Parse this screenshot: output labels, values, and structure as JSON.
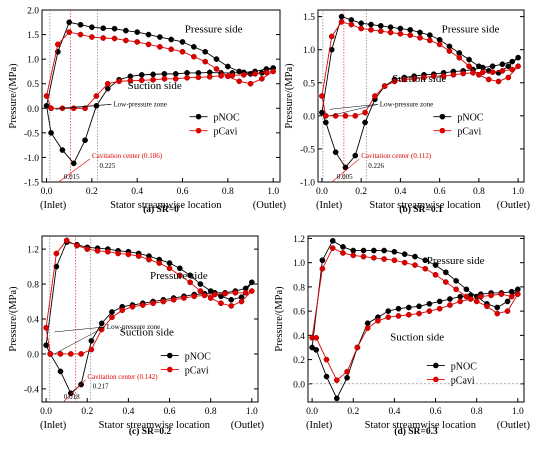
{
  "chart_data": [
    {
      "type": "line",
      "caption": "(a) SR=0",
      "ylabel": "Pressure/(MPa)",
      "xlabel": "Stator streamwise location",
      "x_end_labels": [
        "(Inlet)",
        "(Outlet)"
      ],
      "x_ticks": [
        0.0,
        0.2,
        0.4,
        0.6,
        0.8,
        1.0
      ],
      "x_tick_labels": [
        "0.0",
        "0.2",
        "0.4",
        "0.6",
        "0.8",
        "1.0"
      ],
      "y_ticks": [
        -1.5,
        -1.0,
        -0.5,
        0.0,
        0.5,
        1.0,
        1.5,
        2.0
      ],
      "y_tick_labels": [
        "-1.5",
        "-1.0",
        "-0.5",
        "0.0",
        "0.5",
        "1.0",
        "1.5",
        "2.0"
      ],
      "xlim": [
        -0.02,
        1.03
      ],
      "ylim": [
        -1.5,
        2.0
      ],
      "pressure_side_label": "Pressure side",
      "suction_side_label": "Suction side",
      "low_pressure_label": "Low-pressure zone",
      "cavitation_label": "Cavitation center (0.106)",
      "cavitation_x": 0.106,
      "marker_labels": [
        "0.015",
        "0.225"
      ],
      "marker_x": [
        0.015,
        0.225
      ],
      "zero_line": false,
      "series": [
        {
          "name": "pNOC",
          "color": "#000000",
          "x": [
            0.0,
            0.05,
            0.1,
            0.15,
            0.2,
            0.25,
            0.3,
            0.35,
            0.4,
            0.45,
            0.5,
            0.55,
            0.6,
            0.65,
            0.7,
            0.75,
            0.8,
            0.85,
            0.9,
            0.95,
            1.0,
            0.97,
            0.92,
            0.87,
            0.82,
            0.77,
            0.72,
            0.67,
            0.62,
            0.57,
            0.52,
            0.47,
            0.42,
            0.37,
            0.32,
            0.27,
            0.22,
            0.17,
            0.12,
            0.07,
            0.02
          ],
          "y": [
            0.05,
            1.15,
            1.75,
            1.7,
            1.65,
            1.63,
            1.62,
            1.58,
            1.55,
            1.5,
            1.45,
            1.4,
            1.35,
            1.25,
            1.15,
            1.0,
            0.85,
            0.75,
            0.7,
            0.72,
            0.82,
            0.8,
            0.75,
            0.73,
            0.72,
            0.72,
            0.73,
            0.72,
            0.72,
            0.7,
            0.7,
            0.69,
            0.68,
            0.65,
            0.58,
            0.4,
            0.05,
            -0.65,
            -1.12,
            -0.85,
            -0.5
          ]
        },
        {
          "name": "pCavi",
          "color": "#e00000",
          "x": [
            0.0,
            0.05,
            0.1,
            0.15,
            0.2,
            0.25,
            0.3,
            0.35,
            0.4,
            0.45,
            0.5,
            0.55,
            0.6,
            0.65,
            0.7,
            0.75,
            0.8,
            0.85,
            0.9,
            0.95,
            1.0,
            0.97,
            0.92,
            0.87,
            0.82,
            0.77,
            0.72,
            0.67,
            0.62,
            0.57,
            0.52,
            0.47,
            0.42,
            0.37,
            0.32,
            0.27,
            0.22,
            0.17,
            0.12,
            0.07,
            0.02
          ],
          "y": [
            0.25,
            1.3,
            1.55,
            1.5,
            1.45,
            1.43,
            1.42,
            1.38,
            1.35,
            1.3,
            1.25,
            1.2,
            1.15,
            1.05,
            0.95,
            0.8,
            0.65,
            0.55,
            0.5,
            0.6,
            0.75,
            0.73,
            0.7,
            0.68,
            0.67,
            0.66,
            0.64,
            0.63,
            0.62,
            0.6,
            0.6,
            0.58,
            0.57,
            0.56,
            0.55,
            0.5,
            0.25,
            0.0,
            0.0,
            0.0,
            0.0
          ]
        }
      ]
    },
    {
      "type": "line",
      "caption": "(b) SR=0.1",
      "ylabel": "Pressure/(MPa)",
      "xlabel": "Stator streamwise location",
      "x_end_labels": [
        "(Inlet)",
        "(Outlet)"
      ],
      "x_ticks": [
        0.0,
        0.2,
        0.4,
        0.6,
        0.8,
        1.0
      ],
      "x_tick_labels": [
        "0.0",
        "0.2",
        "0.4",
        "0.6",
        "0.8",
        "1.0"
      ],
      "y_ticks": [
        -1.0,
        -0.5,
        0.0,
        0.5,
        1.0,
        1.5
      ],
      "y_tick_labels": [
        "-1.0",
        "-0.5",
        "0.0",
        "0.5",
        "1.0",
        "1.5"
      ],
      "xlim": [
        -0.02,
        1.03
      ],
      "ylim": [
        -1.0,
        1.6
      ],
      "pressure_side_label": "Pressure side",
      "suction_side_label": "Suction side",
      "low_pressure_label": "Low-pressure zone",
      "cavitation_label": "Cavitation center (0.112)",
      "cavitation_x": 0.112,
      "marker_labels": [
        "0.005",
        "0.226"
      ],
      "marker_x": [
        0.005,
        0.226
      ],
      "zero_line": false,
      "series": [
        {
          "name": "pNOC",
          "color": "#000000",
          "x": [
            0.0,
            0.05,
            0.1,
            0.15,
            0.2,
            0.25,
            0.3,
            0.35,
            0.4,
            0.45,
            0.5,
            0.55,
            0.6,
            0.65,
            0.7,
            0.75,
            0.8,
            0.85,
            0.9,
            0.95,
            1.0,
            0.97,
            0.92,
            0.87,
            0.82,
            0.77,
            0.72,
            0.67,
            0.62,
            0.57,
            0.52,
            0.47,
            0.42,
            0.37,
            0.32,
            0.27,
            0.22,
            0.17,
            0.12,
            0.07,
            0.02
          ],
          "y": [
            0.05,
            1.0,
            1.5,
            1.45,
            1.4,
            1.38,
            1.36,
            1.34,
            1.32,
            1.3,
            1.26,
            1.22,
            1.15,
            1.05,
            0.95,
            0.85,
            0.75,
            0.68,
            0.65,
            0.75,
            0.88,
            0.82,
            0.78,
            0.75,
            0.73,
            0.7,
            0.68,
            0.67,
            0.65,
            0.63,
            0.62,
            0.6,
            0.58,
            0.55,
            0.45,
            0.25,
            -0.1,
            -0.6,
            -0.78,
            -0.55,
            -0.1
          ]
        },
        {
          "name": "pCavi",
          "color": "#e00000",
          "x": [
            0.0,
            0.05,
            0.1,
            0.15,
            0.2,
            0.25,
            0.3,
            0.35,
            0.4,
            0.45,
            0.5,
            0.55,
            0.6,
            0.65,
            0.7,
            0.75,
            0.8,
            0.85,
            0.9,
            0.95,
            1.0,
            0.97,
            0.92,
            0.87,
            0.82,
            0.77,
            0.72,
            0.67,
            0.62,
            0.57,
            0.52,
            0.47,
            0.42,
            0.37,
            0.32,
            0.27,
            0.22,
            0.17,
            0.12,
            0.07,
            0.02
          ],
          "y": [
            0.3,
            1.2,
            1.42,
            1.38,
            1.32,
            1.3,
            1.28,
            1.26,
            1.24,
            1.22,
            1.18,
            1.14,
            1.08,
            0.98,
            0.88,
            0.75,
            0.62,
            0.55,
            0.52,
            0.58,
            0.75,
            0.7,
            0.68,
            0.66,
            0.66,
            0.65,
            0.64,
            0.62,
            0.6,
            0.6,
            0.58,
            0.56,
            0.55,
            0.52,
            0.45,
            0.3,
            0.05,
            0.0,
            0.0,
            0.0,
            0.0
          ]
        }
      ]
    },
    {
      "type": "line",
      "caption": "(c) SR=0.2",
      "ylabel": "Pressure/(MPa)",
      "xlabel": "Stator streamwise location",
      "x_end_labels": [
        "(Inlet)",
        "(Outlet)"
      ],
      "x_ticks": [
        0.0,
        0.2,
        0.4,
        0.6,
        0.8,
        1.0
      ],
      "x_tick_labels": [
        "0.0",
        "0.2",
        "0.4",
        "0.6",
        "0.8",
        "1.0"
      ],
      "y_ticks": [
        -0.4,
        0.0,
        0.4,
        0.8,
        1.2
      ],
      "y_tick_labels": [
        "-0.4",
        "0.0",
        "0.4",
        "0.8",
        "1.2"
      ],
      "xlim": [
        -0.02,
        1.03
      ],
      "ylim": [
        -0.55,
        1.35
      ],
      "pressure_side_label": "Pressure side",
      "suction_side_label": "Suction side",
      "low_pressure_label": "Low-pressure zone",
      "cavitation_label": "Cavitation center (0.142)",
      "cavitation_x": 0.142,
      "marker_labels": [
        "0.018",
        "0.217"
      ],
      "marker_x": [
        0.018,
        0.217
      ],
      "zero_line": false,
      "series": [
        {
          "name": "pNOC",
          "color": "#000000",
          "x": [
            0.0,
            0.05,
            0.1,
            0.15,
            0.2,
            0.25,
            0.3,
            0.35,
            0.4,
            0.45,
            0.5,
            0.55,
            0.6,
            0.65,
            0.7,
            0.75,
            0.8,
            0.85,
            0.9,
            0.95,
            1.0,
            0.97,
            0.92,
            0.87,
            0.82,
            0.77,
            0.72,
            0.67,
            0.62,
            0.57,
            0.52,
            0.47,
            0.42,
            0.37,
            0.32,
            0.27,
            0.22,
            0.17,
            0.12,
            0.07,
            0.02
          ],
          "y": [
            0.1,
            1.0,
            1.28,
            1.25,
            1.22,
            1.21,
            1.2,
            1.18,
            1.17,
            1.15,
            1.12,
            1.08,
            1.04,
            0.98,
            0.9,
            0.8,
            0.72,
            0.66,
            0.62,
            0.65,
            0.82,
            0.75,
            0.72,
            0.7,
            0.7,
            0.69,
            0.68,
            0.66,
            0.64,
            0.62,
            0.6,
            0.58,
            0.56,
            0.54,
            0.48,
            0.35,
            0.15,
            -0.35,
            -0.45,
            -0.2,
            0.0
          ]
        },
        {
          "name": "pCavi",
          "color": "#e00000",
          "x": [
            0.0,
            0.05,
            0.1,
            0.15,
            0.2,
            0.25,
            0.3,
            0.35,
            0.4,
            0.45,
            0.5,
            0.55,
            0.6,
            0.65,
            0.7,
            0.75,
            0.8,
            0.85,
            0.9,
            0.95,
            1.0,
            0.97,
            0.92,
            0.87,
            0.82,
            0.77,
            0.72,
            0.67,
            0.62,
            0.57,
            0.52,
            0.47,
            0.42,
            0.37,
            0.32,
            0.27,
            0.22,
            0.17,
            0.12,
            0.07,
            0.02
          ],
          "y": [
            0.3,
            1.15,
            1.3,
            1.24,
            1.2,
            1.18,
            1.17,
            1.15,
            1.14,
            1.12,
            1.08,
            1.04,
            0.98,
            0.9,
            0.82,
            0.72,
            0.64,
            0.58,
            0.55,
            0.6,
            0.72,
            0.7,
            0.7,
            0.69,
            0.68,
            0.67,
            0.66,
            0.64,
            0.62,
            0.6,
            0.58,
            0.56,
            0.54,
            0.5,
            0.42,
            0.28,
            0.05,
            0.0,
            0.0,
            0.0,
            0.0
          ]
        }
      ]
    },
    {
      "type": "line",
      "caption": "(d) SR=0.3",
      "ylabel": "Pressure/(MPa)",
      "xlabel": "Stator streamwise location",
      "x_end_labels": [
        "(Inlet)",
        "(Outlet)"
      ],
      "x_ticks": [
        0.0,
        0.2,
        0.4,
        0.6,
        0.8,
        1.0
      ],
      "x_tick_labels": [
        "0.0",
        "0.2",
        "0.4",
        "0.6",
        "0.8",
        "1.0"
      ],
      "y_ticks": [
        0.0,
        0.2,
        0.4,
        0.6,
        0.8,
        1.0,
        1.2
      ],
      "y_tick_labels": [
        "0.0",
        "0.2",
        "0.4",
        "0.6",
        "0.8",
        "1.0",
        "1.2"
      ],
      "xlim": [
        -0.02,
        1.03
      ],
      "ylim": [
        -0.15,
        1.22
      ],
      "pressure_side_label": "Pressure side",
      "suction_side_label": "Suction side",
      "zero_line": true,
      "series": [
        {
          "name": "pNOC",
          "color": "#000000",
          "x": [
            0.0,
            0.05,
            0.1,
            0.15,
            0.2,
            0.25,
            0.3,
            0.35,
            0.4,
            0.45,
            0.5,
            0.55,
            0.6,
            0.65,
            0.7,
            0.75,
            0.8,
            0.85,
            0.9,
            0.95,
            1.0,
            0.97,
            0.92,
            0.87,
            0.82,
            0.77,
            0.72,
            0.67,
            0.62,
            0.57,
            0.52,
            0.47,
            0.42,
            0.37,
            0.32,
            0.27,
            0.22,
            0.17,
            0.12,
            0.07,
            0.02
          ],
          "y": [
            0.3,
            1.02,
            1.18,
            1.13,
            1.1,
            1.1,
            1.1,
            1.1,
            1.09,
            1.07,
            1.05,
            1.02,
            0.98,
            0.92,
            0.85,
            0.78,
            0.72,
            0.66,
            0.63,
            0.68,
            0.78,
            0.76,
            0.75,
            0.75,
            0.74,
            0.73,
            0.72,
            0.7,
            0.68,
            0.66,
            0.64,
            0.63,
            0.62,
            0.6,
            0.55,
            0.5,
            0.3,
            0.05,
            -0.12,
            0.06,
            0.28
          ]
        },
        {
          "name": "pCavi",
          "color": "#e00000",
          "x": [
            0.0,
            0.05,
            0.1,
            0.15,
            0.2,
            0.25,
            0.3,
            0.35,
            0.4,
            0.45,
            0.5,
            0.55,
            0.6,
            0.65,
            0.7,
            0.75,
            0.8,
            0.85,
            0.9,
            0.95,
            1.0,
            0.97,
            0.92,
            0.87,
            0.82,
            0.77,
            0.72,
            0.67,
            0.62,
            0.57,
            0.52,
            0.47,
            0.42,
            0.37,
            0.32,
            0.27,
            0.22,
            0.17,
            0.12,
            0.07,
            0.02
          ],
          "y": [
            0.38,
            0.95,
            1.12,
            1.08,
            1.06,
            1.05,
            1.04,
            1.03,
            1.02,
            1.0,
            0.98,
            0.95,
            0.9,
            0.84,
            0.78,
            0.72,
            0.68,
            0.64,
            0.58,
            0.6,
            0.74,
            0.72,
            0.74,
            0.73,
            0.72,
            0.7,
            0.68,
            0.65,
            0.62,
            0.6,
            0.58,
            0.57,
            0.56,
            0.55,
            0.52,
            0.46,
            0.3,
            0.1,
            0.03,
            0.2,
            0.38
          ]
        }
      ]
    }
  ]
}
